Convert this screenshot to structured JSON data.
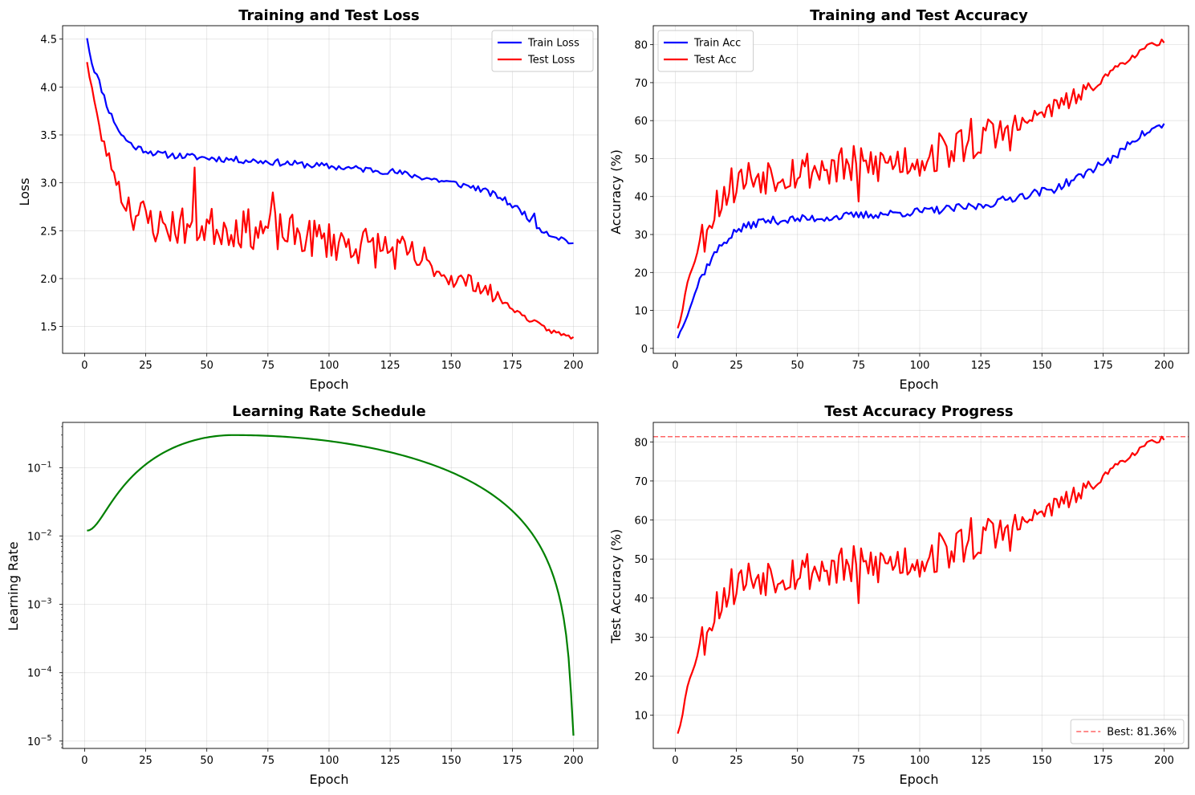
{
  "figure": {
    "background": "#ffffff"
  },
  "colors": {
    "blue": "#0000ff",
    "red": "#ff0000",
    "green": "#008000",
    "grid": "#b0b0b0",
    "best_line": "#ff0000"
  },
  "chart_data": [
    {
      "type": "line",
      "title": "Training and Test Loss",
      "xlabel": "Epoch",
      "ylabel": "Loss",
      "xlim": [
        -9,
        210
      ],
      "ylim": [
        1.22,
        4.64
      ],
      "xticks": [
        0,
        25,
        50,
        75,
        100,
        125,
        150,
        175,
        200
      ],
      "yticks": [
        1.5,
        2.0,
        2.5,
        3.0,
        3.5,
        4.0,
        4.5
      ],
      "ytick_labels": [
        "1.5",
        "2.0",
        "2.5",
        "3.0",
        "3.5",
        "4.0",
        "4.5"
      ],
      "grid": true,
      "legend_position": "top-right",
      "series": [
        {
          "name": "Train Loss",
          "color": "#0000ff",
          "gen": "trainLoss"
        },
        {
          "name": "Test Loss",
          "color": "#ff0000",
          "gen": "testLoss"
        }
      ]
    },
    {
      "type": "line",
      "title": "Training and Test Accuracy",
      "xlabel": "Epoch",
      "ylabel": "Accuracy (%)",
      "xlim": [
        -9,
        210
      ],
      "ylim": [
        -1.3,
        85
      ],
      "xticks": [
        0,
        25,
        50,
        75,
        100,
        125,
        150,
        175,
        200
      ],
      "yticks": [
        0,
        10,
        20,
        30,
        40,
        50,
        60,
        70,
        80
      ],
      "ytick_labels": [
        "0",
        "10",
        "20",
        "30",
        "40",
        "50",
        "60",
        "70",
        "80"
      ],
      "grid": true,
      "legend_position": "top-left",
      "series": [
        {
          "name": "Train Acc",
          "color": "#0000ff",
          "gen": "trainAcc"
        },
        {
          "name": "Test Acc",
          "color": "#ff0000",
          "gen": "testAcc"
        }
      ]
    },
    {
      "type": "line",
      "title": "Learning Rate Schedule",
      "xlabel": "Epoch",
      "ylabel": "Learning Rate",
      "xlim": [
        -9,
        210
      ],
      "ylim": [
        7.8e-06,
        0.46
      ],
      "yscale": "log",
      "xticks": [
        0,
        25,
        50,
        75,
        100,
        125,
        150,
        175,
        200
      ],
      "yticks": [
        1e-05,
        0.0001,
        0.001,
        0.01,
        0.1
      ],
      "ytick_labels": [
        "10",
        "10",
        "10",
        "10",
        "10"
      ],
      "ytick_exponents": [
        "−5",
        "−4",
        "−3",
        "−2",
        "−1"
      ],
      "grid": true,
      "series": [
        {
          "color": "#008000",
          "gen": "lr"
        }
      ]
    },
    {
      "type": "line",
      "title": "Test Accuracy Progress",
      "xlabel": "Epoch",
      "ylabel": "Test Accuracy (%)",
      "xlim": [
        -9,
        210
      ],
      "ylim": [
        1.5,
        85
      ],
      "xticks": [
        0,
        25,
        50,
        75,
        100,
        125,
        150,
        175,
        200
      ],
      "yticks": [
        10,
        20,
        30,
        40,
        50,
        60,
        70,
        80
      ],
      "ytick_labels": [
        "10",
        "20",
        "30",
        "40",
        "50",
        "60",
        "70",
        "80"
      ],
      "grid": true,
      "legend_position": "bottom-right",
      "hline": {
        "y": 81.36,
        "label": "Best: 81.36%",
        "color": "#ff0000",
        "dashed": true
      },
      "series": [
        {
          "color": "#ff0000",
          "gen": "testAcc"
        }
      ]
    }
  ]
}
